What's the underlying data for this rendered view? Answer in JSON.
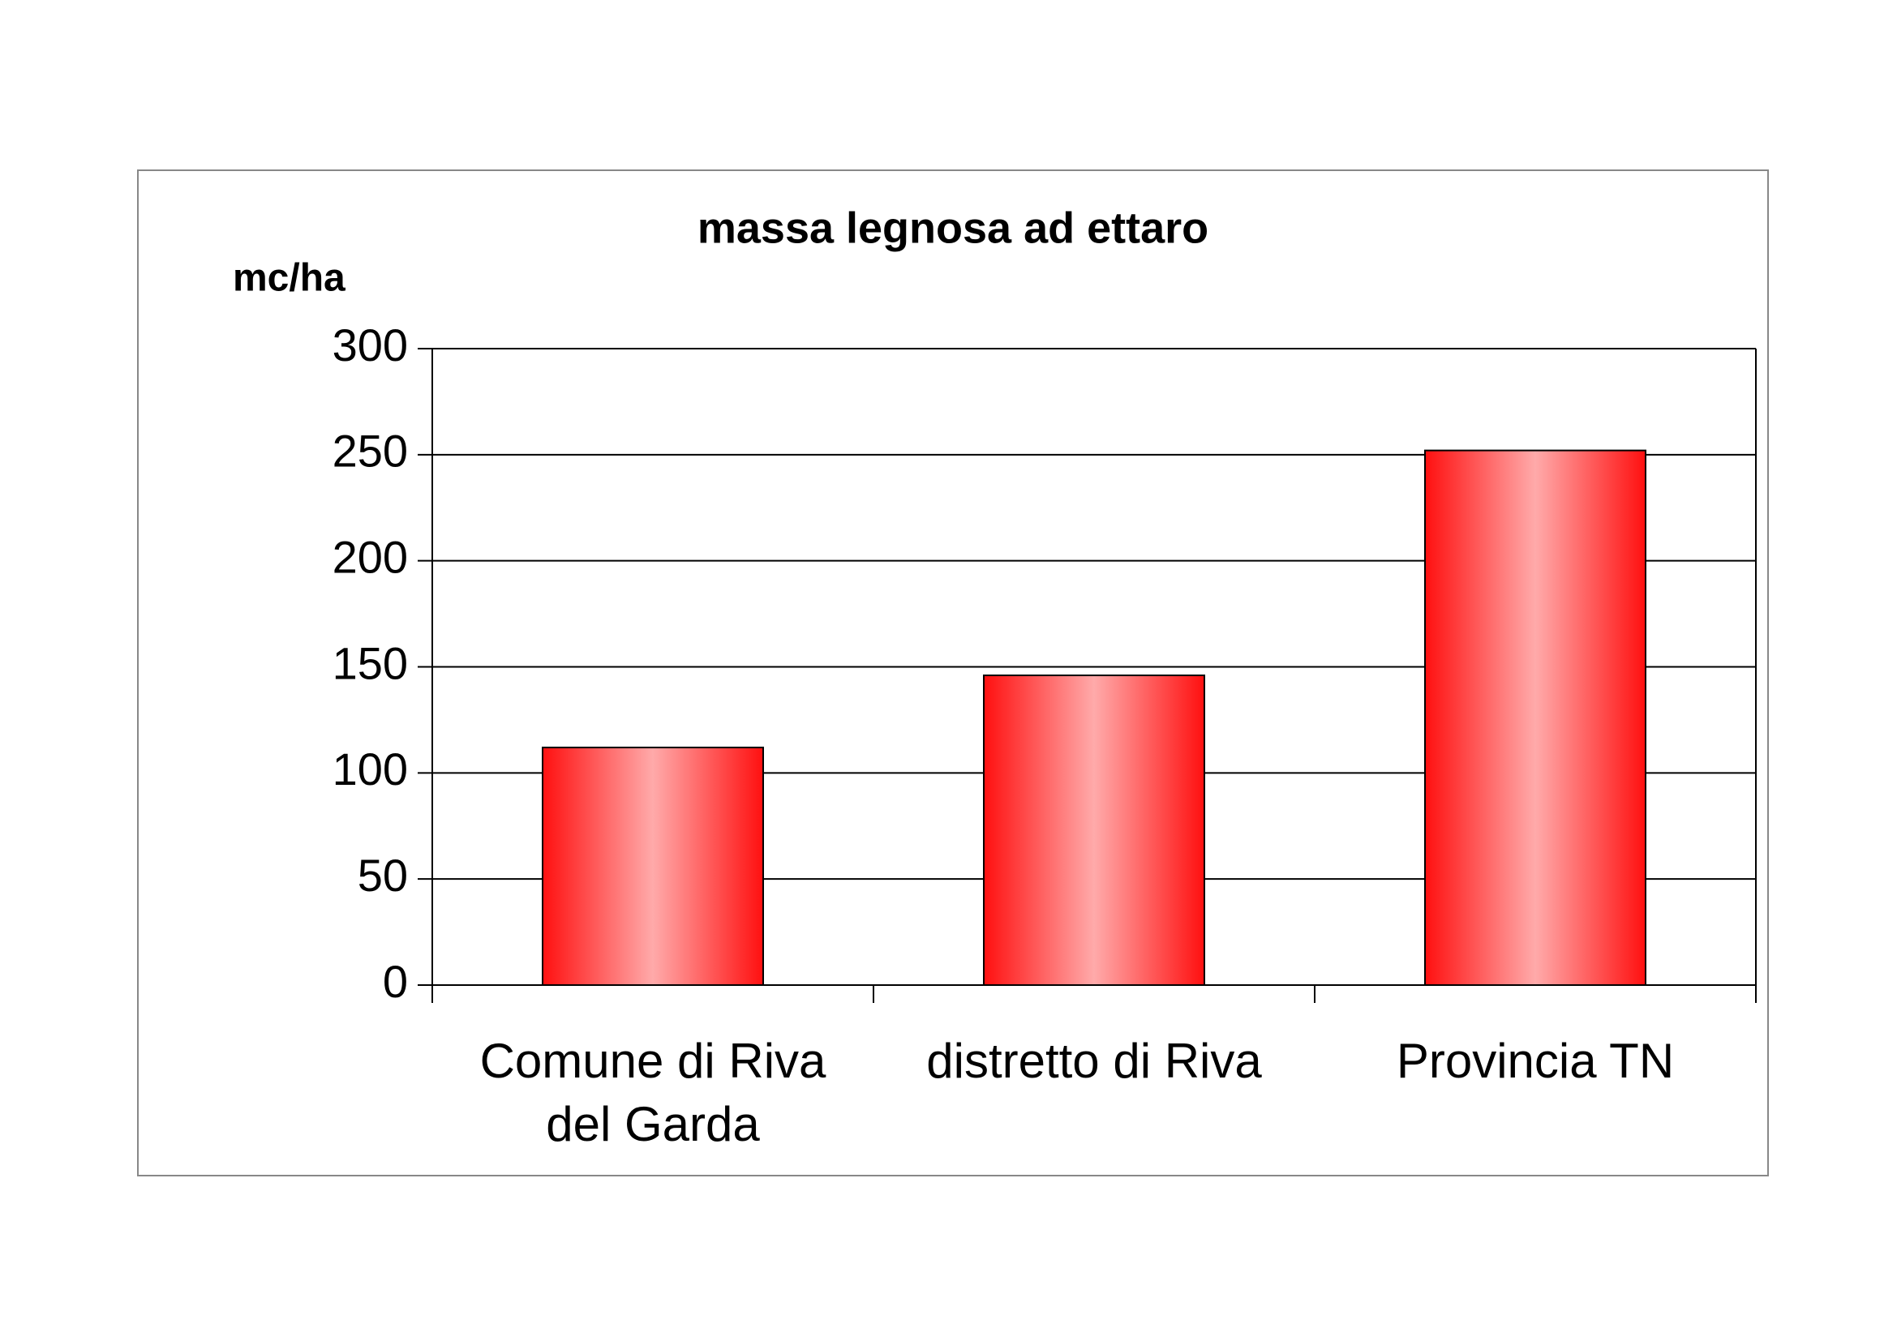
{
  "chart_data": {
    "type": "bar",
    "title": "massa legnosa ad ettaro",
    "y_label": "mc/ha",
    "categories": [
      "Comune di Riva del Garda",
      "distretto di Riva",
      "Provincia TN"
    ],
    "values": [
      112,
      146,
      252
    ],
    "color": "#ff1010",
    "ylim": [
      0,
      300
    ],
    "yticks": [
      0,
      50,
      100,
      150,
      200,
      250,
      300
    ],
    "grid": true
  }
}
